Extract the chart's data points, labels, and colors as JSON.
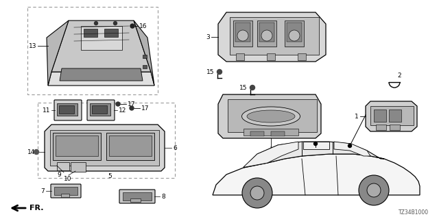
{
  "bg_color": "#ffffff",
  "diagram_code": "TZ34B1000",
  "figsize": [
    6.4,
    3.2
  ],
  "dpi": 100
}
